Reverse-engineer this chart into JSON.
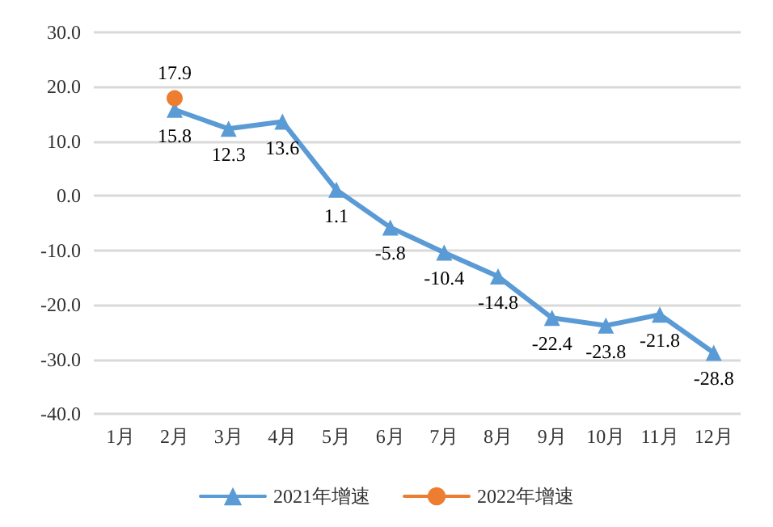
{
  "chart_data": {
    "type": "line",
    "categories": [
      "1月",
      "2月",
      "3月",
      "4月",
      "5月",
      "6月",
      "7月",
      "8月",
      "9月",
      "10月",
      "11月",
      "12月"
    ],
    "series": [
      {
        "name": "2021年增速",
        "color": "#5b9bd5",
        "marker": "triangle",
        "values": [
          null,
          15.8,
          12.3,
          13.6,
          1.1,
          -5.8,
          -10.4,
          -14.8,
          -22.4,
          -23.8,
          -21.8,
          -28.8
        ]
      },
      {
        "name": "2022年增速",
        "color": "#ed7d31",
        "marker": "circle",
        "values": [
          null,
          17.9,
          null,
          null,
          null,
          null,
          null,
          null,
          null,
          null,
          null,
          null
        ]
      }
    ],
    "ylim": [
      -40,
      30
    ],
    "yticks": [
      {
        "value": -40,
        "label": "-40.0"
      },
      {
        "value": -30,
        "label": "-30.0"
      },
      {
        "value": -20,
        "label": "-20.0"
      },
      {
        "value": -10,
        "label": "-10.0"
      },
      {
        "value": 0,
        "label": "0.0"
      },
      {
        "value": 10,
        "label": "10.0"
      },
      {
        "value": 20,
        "label": "20.0"
      },
      {
        "value": 30,
        "label": "30.0"
      }
    ],
    "grid": "y",
    "legend": "bottom",
    "data_labels": true
  }
}
